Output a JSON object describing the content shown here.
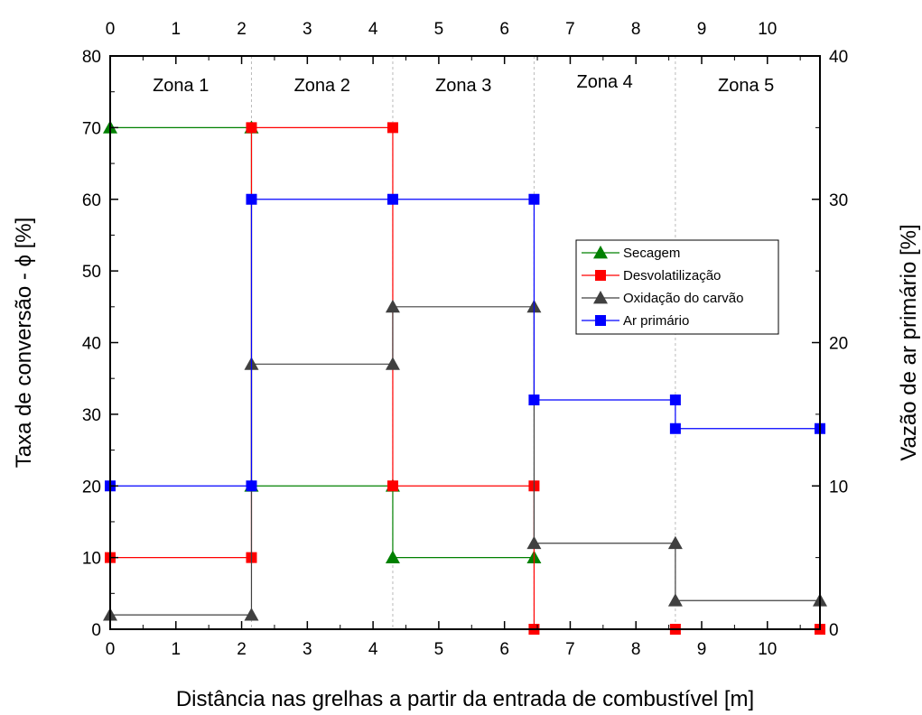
{
  "chart_data": {
    "type": "line",
    "title": "",
    "xlabel": "Distância nas grelhas a partir da entrada de combustível [m]",
    "ylabel_left": "Taxa de conversão - ϕ [%]",
    "ylabel_right": "Vazão de ar primário [%]",
    "xlim": [
      0,
      10.8
    ],
    "ylim_left": [
      0,
      80
    ],
    "ylim_right": [
      0,
      40
    ],
    "x_ticks": [
      "0",
      "1",
      "2",
      "3",
      "4",
      "5",
      "6",
      "7",
      "8",
      "9",
      "10"
    ],
    "y_left_ticks": [
      "0",
      "10",
      "20",
      "30",
      "40",
      "50",
      "60",
      "70",
      "80"
    ],
    "y_right_ticks": [
      "0",
      "10",
      "20",
      "30",
      "40"
    ],
    "grid": false,
    "zone_boundaries": [
      2.15,
      4.3,
      6.45,
      8.6
    ],
    "zones": [
      {
        "label": "Zona 1",
        "x": 1.075,
        "y": 76
      },
      {
        "label": "Zona 2",
        "x": 3.225,
        "y": 76
      },
      {
        "label": "Zona 3",
        "x": 5.375,
        "y": 76
      },
      {
        "label": "Zona 4",
        "x": 7.525,
        "y": 76.5
      },
      {
        "label": "Zona 5",
        "x": 9.675,
        "y": 76
      }
    ],
    "legend_position": "center-right",
    "series": [
      {
        "name": "Secagem",
        "color": "#008000",
        "marker": "triangle",
        "axis": "left",
        "points": [
          [
            0,
            70
          ],
          [
            2.15,
            70
          ],
          [
            2.15,
            20
          ],
          [
            4.3,
            20
          ],
          [
            4.3,
            10
          ],
          [
            6.45,
            10
          ]
        ]
      },
      {
        "name": "Desvolatilização",
        "color": "#ff0000",
        "marker": "square",
        "axis": "left",
        "points": [
          [
            0,
            10
          ],
          [
            2.15,
            10
          ],
          [
            2.15,
            70
          ],
          [
            4.3,
            70
          ],
          [
            4.3,
            20
          ],
          [
            6.45,
            20
          ],
          [
            6.45,
            0
          ],
          [
            8.6,
            0
          ],
          [
            10.8,
            0
          ]
        ]
      },
      {
        "name": "Oxidação do carvão",
        "color": "#404040",
        "marker": "triangle",
        "axis": "left",
        "points": [
          [
            0,
            2
          ],
          [
            2.15,
            2
          ],
          [
            2.15,
            37
          ],
          [
            4.3,
            37
          ],
          [
            4.3,
            45
          ],
          [
            6.45,
            45
          ],
          [
            6.45,
            12
          ],
          [
            8.6,
            12
          ],
          [
            8.6,
            4
          ],
          [
            10.8,
            4
          ]
        ]
      },
      {
        "name": "Ar primário",
        "color": "#0000ff",
        "marker": "square",
        "axis": "right",
        "points": [
          [
            0,
            10
          ],
          [
            2.15,
            10
          ],
          [
            2.15,
            30
          ],
          [
            4.3,
            30
          ],
          [
            6.45,
            30
          ],
          [
            6.45,
            16
          ],
          [
            8.6,
            16
          ],
          [
            8.6,
            14
          ],
          [
            10.8,
            14
          ]
        ]
      }
    ]
  }
}
